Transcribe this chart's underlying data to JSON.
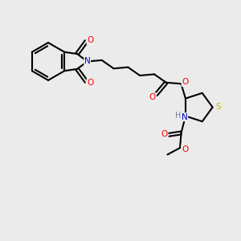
{
  "bg_color": "#ebebeb",
  "atom_colors": {
    "C": "#000000",
    "N": "#0000cc",
    "O": "#ff0000",
    "S": "#bbbb00",
    "H": "#708090"
  },
  "bond_color": "#000000",
  "bond_width": 1.5,
  "font_size": 7.5
}
